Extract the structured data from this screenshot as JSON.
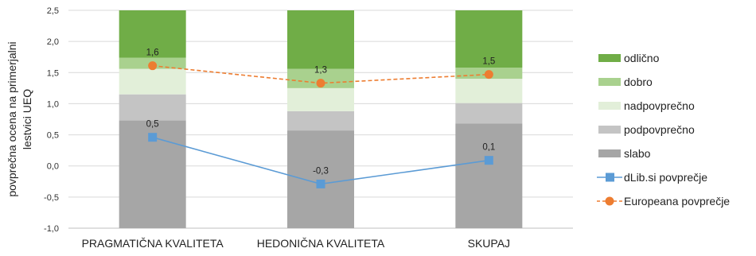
{
  "chart_data": {
    "type": "bar",
    "stacked": true,
    "ylabel_lines": [
      "povprečna ocena na primerjalni",
      "lestvici UEQ"
    ],
    "ylim": [
      -1,
      2.5
    ],
    "yticks": [
      "-1,0",
      "-0,5",
      "0,0",
      "0,5",
      "1,0",
      "1,5",
      "2,0",
      "2,5"
    ],
    "ytick_values": [
      -1,
      -0.5,
      0,
      0.5,
      1,
      1.5,
      2,
      2.5
    ],
    "categories": [
      "PRAGMATIČNA KVALITETA",
      "HEDONIČNA KVALITETA",
      "SKUPAJ"
    ],
    "grid": true,
    "legend_position": "right",
    "series": [
      {
        "name": "slabo",
        "color": "#a6a6a6",
        "values": [
          1.73,
          1.57,
          1.68
        ]
      },
      {
        "name": "podpovprečno",
        "color": "#c4c4c4",
        "values": [
          0.42,
          0.31,
          0.33
        ]
      },
      {
        "name": "nadpovprečno",
        "color": "#e2efd9",
        "values": [
          0.41,
          0.37,
          0.39
        ]
      },
      {
        "name": "dobro",
        "color": "#a9d18e",
        "values": [
          0.18,
          0.31,
          0.18
        ]
      },
      {
        "name": "odlično",
        "color": "#70ad47",
        "values": [
          0.76,
          0.94,
          0.92
        ]
      }
    ],
    "bar_base": -1,
    "lines": [
      {
        "name": "dLib.si povprečje",
        "color": "#5b9bd5",
        "marker": "square",
        "dash": false,
        "values": [
          0.46,
          -0.29,
          0.09
        ],
        "labels": [
          "0,5",
          "-0,3",
          "0,1"
        ]
      },
      {
        "name": "Europeana povprečje",
        "color": "#ed7d31",
        "marker": "circle",
        "dash": true,
        "values": [
          1.61,
          1.33,
          1.47
        ],
        "labels": [
          "1,6",
          "1,3",
          "1,5"
        ]
      }
    ],
    "legend_order": [
      "odlično",
      "dobro",
      "nadpovprečno",
      "podpovprečno",
      "slabo",
      "dLib.si povprečje",
      "Europeana povprečje"
    ]
  }
}
